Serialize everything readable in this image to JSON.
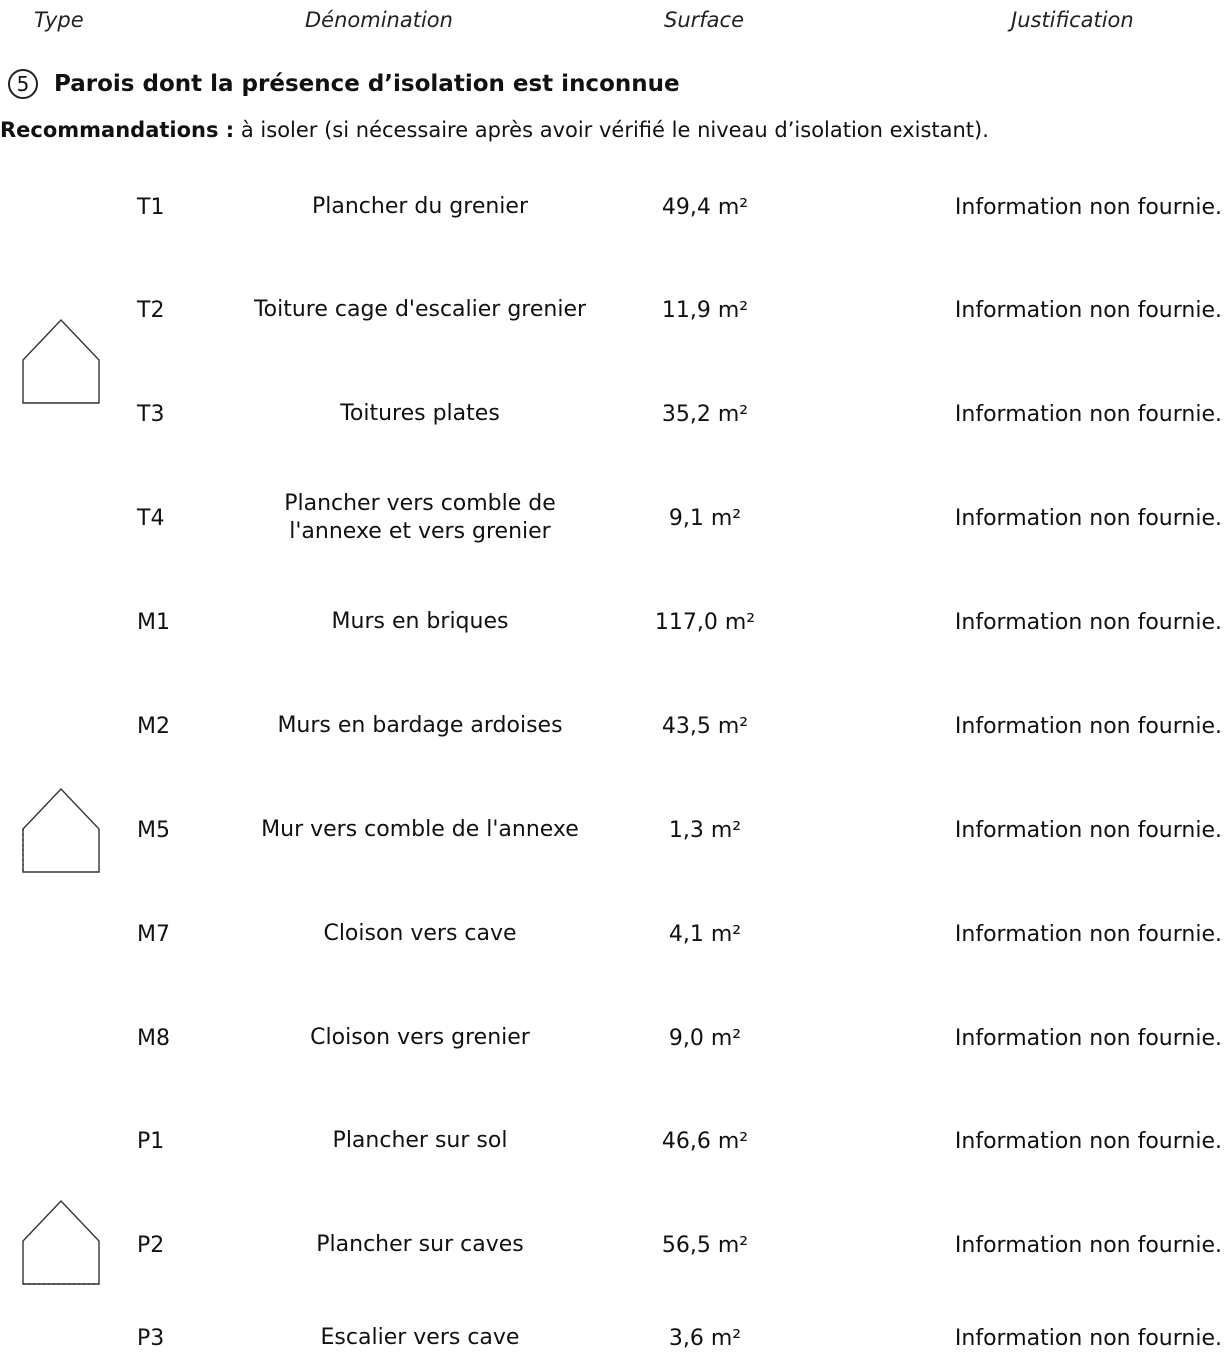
{
  "headers": {
    "type": "Type",
    "denomination": "Dénomination",
    "surface": "Surface",
    "justification": "Justification"
  },
  "section": {
    "number": "5",
    "title": "Parois dont la présence d’isolation est inconnue"
  },
  "recommendations": {
    "label": "Recommandations :",
    "text": " à isoler (si nécessaire après avoir vérifié le niveau d’isolation existant)."
  },
  "icons": [
    "house-roof-icon",
    "house-wall-icon",
    "house-floor-icon"
  ],
  "rows": [
    {
      "code": "T1",
      "name": "Plancher du grenier",
      "surface": "49,4 m²",
      "justification": "Information non fournie."
    },
    {
      "code": "T2",
      "name": "Toiture cage d'escalier grenier",
      "surface": "11,9 m²",
      "justification": "Information non fournie."
    },
    {
      "code": "T3",
      "name": "Toitures plates",
      "surface": "35,2 m²",
      "justification": "Information non fournie."
    },
    {
      "code": "T4",
      "name": "Plancher vers comble de l'annexe et vers grenier",
      "surface": "9,1 m²",
      "justification": "Information non fournie."
    },
    {
      "code": "M1",
      "name": "Murs en briques",
      "surface": "117,0 m²",
      "justification": "Information non fournie."
    },
    {
      "code": "M2",
      "name": "Murs en bardage ardoises",
      "surface": "43,5 m²",
      "justification": "Information non fournie."
    },
    {
      "code": "M5",
      "name": "Mur vers comble de l'annexe",
      "surface": "1,3 m²",
      "justification": "Information non fournie."
    },
    {
      "code": "M7",
      "name": "Cloison vers cave",
      "surface": "4,1 m²",
      "justification": "Information non fournie."
    },
    {
      "code": "M8",
      "name": "Cloison vers grenier",
      "surface": "9,0 m²",
      "justification": "Information non fournie."
    },
    {
      "code": "P1",
      "name": "Plancher sur sol",
      "surface": "46,6 m²",
      "justification": "Information non fournie."
    },
    {
      "code": "P2",
      "name": "Plancher sur caves",
      "surface": "56,5 m²",
      "justification": "Information non fournie."
    },
    {
      "code": "P3",
      "name": "Escalier vers cave",
      "surface": "3,6 m²",
      "justification": "Information non fournie."
    }
  ]
}
